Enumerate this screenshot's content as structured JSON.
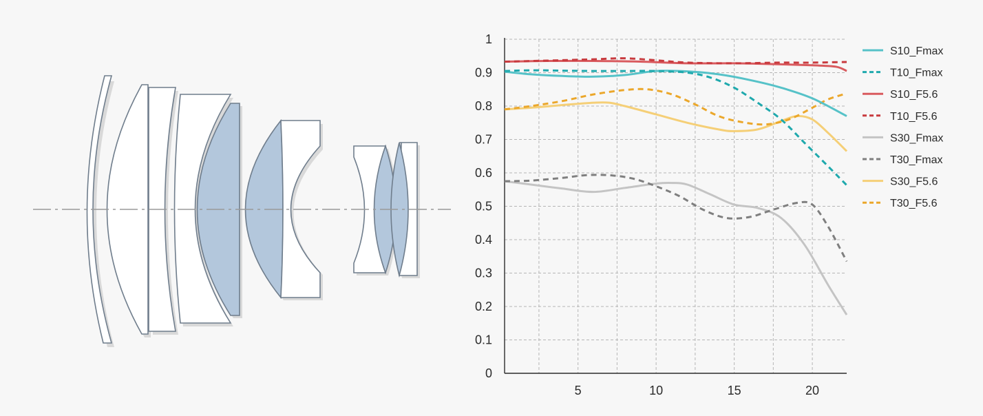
{
  "figure": {
    "left_panel": "lens construction diagram",
    "colors": {
      "background": "#f7f7f7",
      "lens_glass": "#ffffff",
      "lens_special": "#b3c7dc",
      "lens_outline": "#6f7d8c",
      "axis_line": "#9a9a9a"
    }
  },
  "chart_data": {
    "type": "line",
    "title": "",
    "xlabel": "",
    "ylabel": "",
    "xlim": [
      0.3,
      22.2
    ],
    "ylim": [
      0,
      1
    ],
    "x_ticks": [
      5,
      10,
      15,
      20
    ],
    "x_tick_labels": [
      "5",
      "10",
      "15",
      "20"
    ],
    "y_ticks": [
      0,
      0.1,
      0.2,
      0.3,
      0.4,
      0.5,
      0.6,
      0.7,
      0.8,
      0.9,
      1
    ],
    "y_tick_labels": [
      "0",
      "0.1",
      "0.2",
      "0.3",
      "0.4",
      "0.5",
      "0.6",
      "0.7",
      "0.8",
      "0.9",
      "1"
    ],
    "x_grid": [
      2.5,
      5,
      7.5,
      10,
      12.5,
      15,
      17.5,
      20
    ],
    "grid": true,
    "legend_position": "right",
    "series": [
      {
        "name": "S10_Fmax",
        "color": "#56c2c8",
        "dash": false,
        "x": [
          0.3,
          2,
          4,
          6,
          8,
          10,
          12,
          14,
          16,
          18,
          20,
          22.2
        ],
        "values": [
          0.903,
          0.895,
          0.89,
          0.888,
          0.893,
          0.905,
          0.904,
          0.895,
          0.878,
          0.855,
          0.823,
          0.77
        ]
      },
      {
        "name": "T10_Fmax",
        "color": "#1fa9ad",
        "dash": true,
        "x": [
          0.3,
          2,
          4,
          6,
          8,
          10,
          12,
          13.5,
          15,
          16.5,
          18,
          19.5,
          21,
          22.2
        ],
        "values": [
          0.905,
          0.907,
          0.906,
          0.905,
          0.905,
          0.905,
          0.9,
          0.885,
          0.855,
          0.81,
          0.76,
          0.69,
          0.62,
          0.563
        ]
      },
      {
        "name": "S10_F5.6",
        "color": "#d95a5e",
        "dash": false,
        "x": [
          0.3,
          3,
          6,
          9,
          12,
          15,
          18,
          20,
          21.5,
          22.2
        ],
        "values": [
          0.933,
          0.935,
          0.935,
          0.933,
          0.928,
          0.928,
          0.925,
          0.922,
          0.918,
          0.905
        ]
      },
      {
        "name": "T10_F5.6",
        "color": "#c83a3e",
        "dash": true,
        "x": [
          0.3,
          3,
          6,
          8,
          10,
          12,
          15,
          18,
          20,
          22.2
        ],
        "values": [
          0.933,
          0.936,
          0.94,
          0.943,
          0.937,
          0.93,
          0.928,
          0.93,
          0.93,
          0.932
        ]
      },
      {
        "name": "S30_Fmax",
        "color": "#c4c4c4",
        "dash": false,
        "x": [
          0.3,
          2,
          4,
          6,
          8,
          10,
          11,
          12,
          13.5,
          15,
          16.5,
          18,
          19.5,
          21,
          22.2
        ],
        "values": [
          0.575,
          0.565,
          0.553,
          0.543,
          0.555,
          0.568,
          0.57,
          0.565,
          0.535,
          0.505,
          0.495,
          0.465,
          0.385,
          0.265,
          0.175
        ]
      },
      {
        "name": "T30_Fmax",
        "color": "#7f7f7f",
        "dash": true,
        "x": [
          0.3,
          2,
          4,
          5.5,
          7,
          8.5,
          10,
          11.5,
          13,
          14.5,
          16,
          17.5,
          19,
          20,
          21,
          22.2
        ],
        "values": [
          0.575,
          0.577,
          0.585,
          0.593,
          0.593,
          0.583,
          0.56,
          0.53,
          0.49,
          0.465,
          0.468,
          0.49,
          0.51,
          0.505,
          0.44,
          0.335
        ]
      },
      {
        "name": "S30_F5.6",
        "color": "#f5cf77",
        "dash": false,
        "x": [
          0.3,
          2,
          4,
          6,
          7,
          8,
          10,
          12,
          14,
          15,
          16.5,
          18,
          19,
          20,
          21,
          22.2
        ],
        "values": [
          0.79,
          0.795,
          0.803,
          0.81,
          0.81,
          0.8,
          0.775,
          0.75,
          0.73,
          0.725,
          0.73,
          0.755,
          0.77,
          0.76,
          0.72,
          0.665
        ]
      },
      {
        "name": "T30_F5.6",
        "color": "#eba72b",
        "dash": true,
        "x": [
          0.3,
          2,
          4,
          6,
          8,
          9.5,
          11,
          12.5,
          14,
          15.5,
          17,
          18.5,
          20,
          21,
          22.2
        ],
        "values": [
          0.79,
          0.8,
          0.815,
          0.835,
          0.848,
          0.85,
          0.835,
          0.805,
          0.77,
          0.752,
          0.745,
          0.76,
          0.795,
          0.82,
          0.838
        ]
      }
    ]
  }
}
